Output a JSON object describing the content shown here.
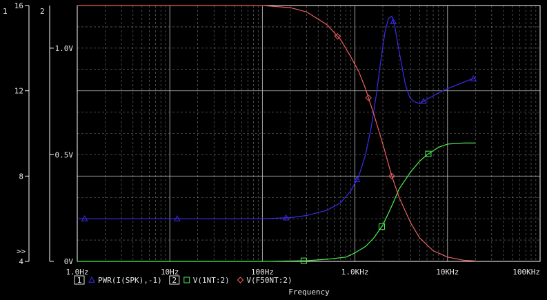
{
  "colors": {
    "background": "#000000",
    "text": "#e6e6e6",
    "axis": "#ffffff",
    "grid": "#c8c8c8"
  },
  "chart_data": {
    "type": "line",
    "xlabel": "Frequency",
    "x_scale": "log",
    "xlim": [
      1,
      100000
    ],
    "x_ticks": [
      1,
      10,
      100,
      1000,
      10000,
      100000
    ],
    "x_tick_labels": [
      "1.0Hz",
      "10Hz",
      "100Hz",
      "1.0KHz",
      "10KHz",
      "100KHz"
    ],
    "grid": true,
    "axes": [
      {
        "id": "1",
        "side": "left-outer",
        "ylim": [
          4,
          16
        ],
        "ticks": [
          4,
          8,
          12,
          16
        ],
        "tick_labels": [
          "4",
          "8",
          "12",
          "16"
        ],
        "extra_marker": ">>"
      },
      {
        "id": "2",
        "side": "left-inner",
        "ylim": [
          0,
          1.2
        ],
        "ticks": [
          0,
          0.5,
          1.0
        ],
        "tick_labels": [
          "0V",
          "0.5V",
          "1.0V"
        ]
      }
    ],
    "legend": [
      {
        "axis_label": "1",
        "name": "PWR(I(SPK),-1)",
        "color": "#3c2cf0",
        "marker": "triangle"
      },
      {
        "axis_label": "2",
        "name": "V(1NT:2)",
        "color": "#50f050",
        "marker": "square"
      },
      {
        "axis_label": "",
        "name": "V(F50NT:2)",
        "color": "#f06060",
        "marker": "diamond"
      }
    ],
    "series": [
      {
        "name": "PWR(I(SPK),-1)",
        "axis": "1",
        "color": "#3c2cf0",
        "marker": "triangle",
        "x": [
          1,
          3,
          10,
          30,
          100,
          200,
          300,
          500,
          700,
          900,
          1100,
          1300,
          1500,
          1700,
          1900,
          2100,
          2300,
          2500,
          2700,
          2900,
          3200,
          3500,
          3900,
          4300,
          5000,
          6000,
          8000,
          10000,
          13000,
          17000,
          20000
        ],
        "y": [
          6.0,
          6.0,
          6.0,
          6.0,
          6.0,
          6.05,
          6.15,
          6.4,
          6.75,
          7.3,
          8.0,
          9.0,
          10.3,
          11.8,
          13.4,
          14.7,
          15.4,
          15.5,
          15.0,
          14.2,
          13.2,
          12.3,
          11.7,
          11.5,
          11.4,
          11.6,
          11.9,
          12.1,
          12.3,
          12.5,
          12.6
        ],
        "marker_x": [
          1.2,
          12,
          180,
          1050,
          2600,
          5500,
          19000
        ]
      },
      {
        "name": "V(1NT:2)",
        "axis": "2",
        "color": "#50f050",
        "marker": "square",
        "x": [
          1,
          10,
          100,
          300,
          500,
          800,
          1000,
          1300,
          1600,
          2000,
          2500,
          3000,
          4000,
          5000,
          6000,
          8000,
          10000,
          15000,
          20000
        ],
        "y": [
          0.0,
          0.0,
          0.0,
          0.003,
          0.01,
          0.02,
          0.04,
          0.07,
          0.11,
          0.17,
          0.26,
          0.34,
          0.42,
          0.47,
          0.5,
          0.535,
          0.55,
          0.555,
          0.555
        ],
        "marker_x": [
          280,
          1950,
          6200
        ]
      },
      {
        "name": "V(F50NT:2)",
        "axis": "2",
        "color": "#f06060",
        "marker": "diamond",
        "x": [
          1,
          10,
          100,
          200,
          300,
          500,
          700,
          900,
          1100,
          1300,
          1600,
          2000,
          2500,
          3000,
          4000,
          5000,
          7000,
          10000,
          15000,
          20000
        ],
        "y": [
          1.2,
          1.2,
          1.2,
          1.19,
          1.17,
          1.11,
          1.04,
          0.96,
          0.89,
          0.81,
          0.69,
          0.55,
          0.4,
          0.3,
          0.18,
          0.11,
          0.05,
          0.02,
          0.005,
          0.002
        ],
        "marker_x": [
          650,
          1400,
          2500
        ]
      }
    ]
  }
}
